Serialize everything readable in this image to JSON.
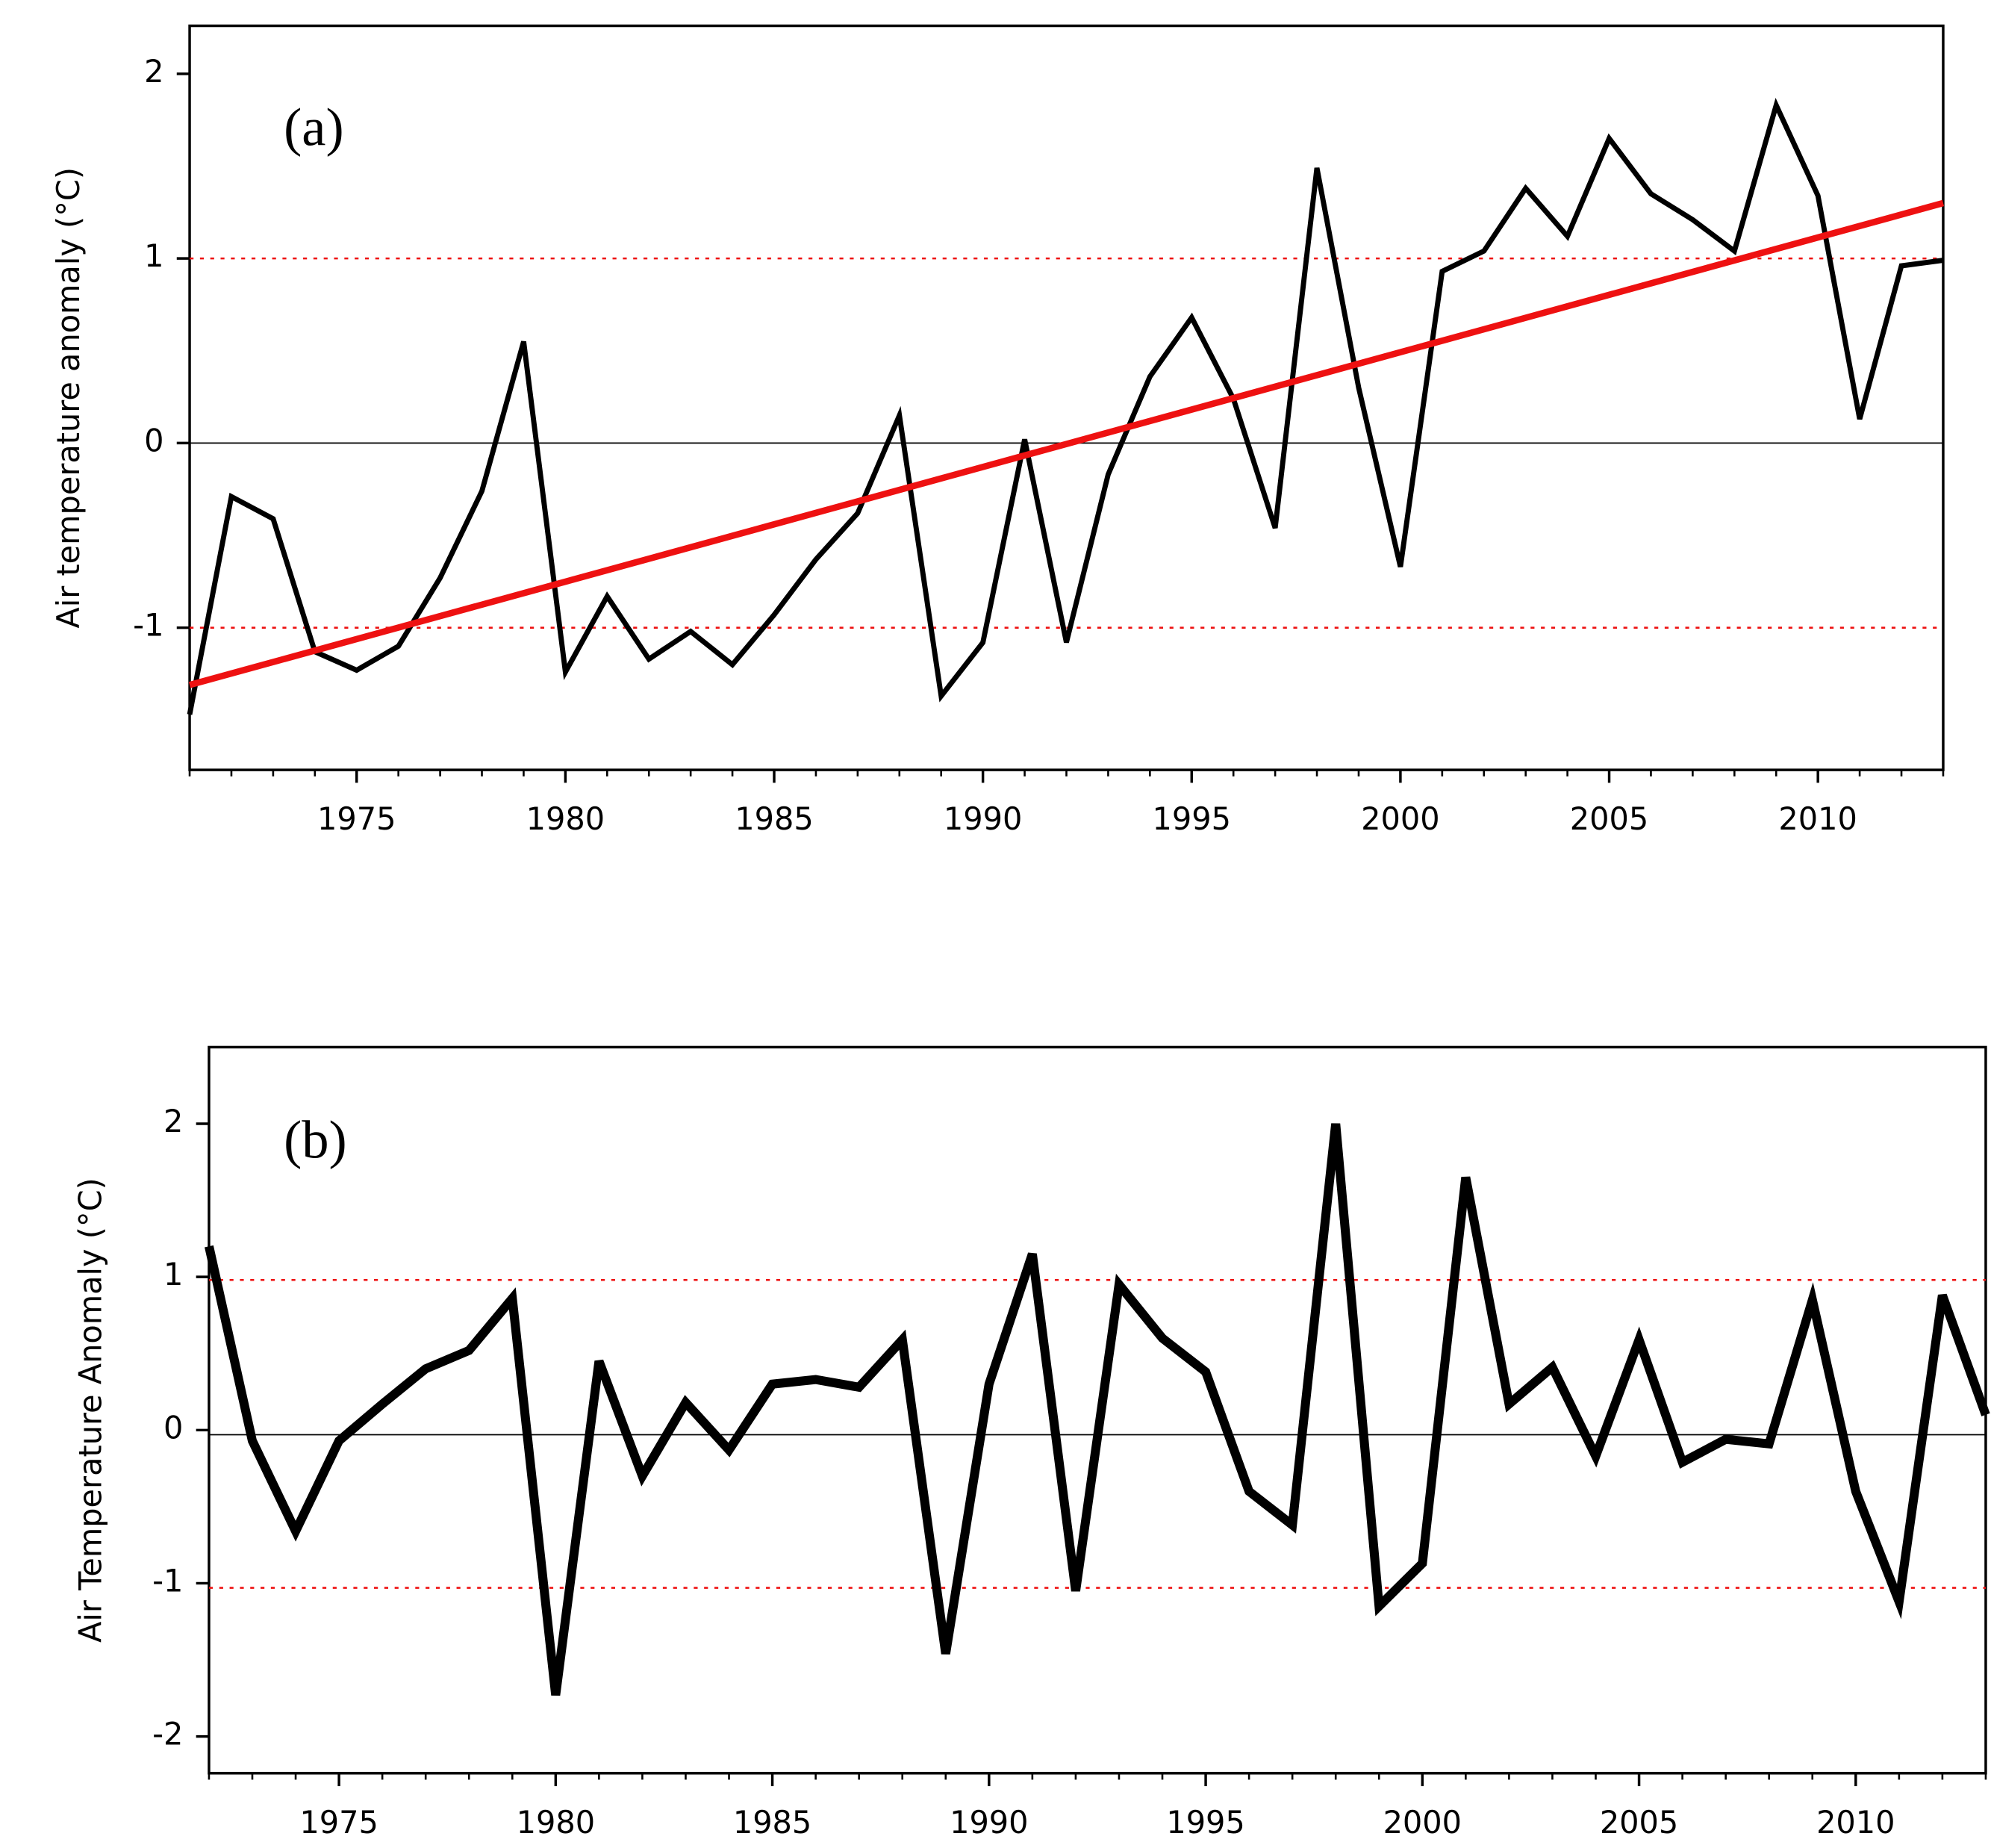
{
  "chart_data": [
    {
      "type": "line",
      "annotation": "(a)",
      "y_label": "Air temperature anomaly (°C)",
      "xlim": [
        1971,
        2013
      ],
      "xticks": [
        1975,
        1980,
        1985,
        1990,
        1995,
        2000,
        2005,
        2010
      ],
      "ylim": [
        -1.77,
        2.26
      ],
      "yticks": [
        -1,
        0,
        1,
        2
      ],
      "series": [
        {
          "color": "#000000",
          "x": [
            1971,
            1972,
            1973,
            1974,
            1975,
            1976,
            1977,
            1978,
            1979,
            1980,
            1981,
            1982,
            1983,
            1984,
            1985,
            1986,
            1987,
            1988,
            1989,
            1990,
            1991,
            1992,
            1993,
            1994,
            1995,
            1996,
            1997,
            1998,
            1999,
            2000,
            2001,
            2002,
            2003,
            2004,
            2005,
            2006,
            2007,
            2008,
            2009,
            2010,
            2011,
            2012,
            2013
          ],
          "values": [
            -1.47,
            -0.29,
            -0.41,
            -1.13,
            -1.23,
            -1.1,
            -0.73,
            -0.26,
            0.55,
            -1.24,
            -0.83,
            -1.17,
            -1.02,
            -1.2,
            -0.93,
            -0.63,
            -0.38,
            0.15,
            -1.37,
            -1.08,
            0.02,
            -1.08,
            -0.17,
            0.36,
            0.68,
            0.24,
            -0.46,
            1.49,
            0.3,
            -0.67,
            0.93,
            1.04,
            1.38,
            1.12,
            1.65,
            1.35,
            1.21,
            1.04,
            1.83,
            1.34,
            0.13,
            0.96,
            0.99
          ]
        },
        {
          "color": "#ee1111",
          "x": [
            1971,
            2013
          ],
          "values": [
            -1.31,
            1.3
          ]
        }
      ],
      "reference_lines": [
        {
          "value": 1,
          "color": "#ee1111",
          "style": "dotted"
        },
        {
          "value": 0,
          "color": "#000000",
          "style": "solid"
        },
        {
          "value": -1,
          "color": "#ee1111",
          "style": "dotted"
        }
      ]
    },
    {
      "type": "line",
      "annotation": "(b)",
      "y_label": "Air Temperature Anomaly (°C)",
      "xlim": [
        1972,
        2013
      ],
      "xticks": [
        1975,
        1980,
        1985,
        1990,
        1995,
        2000,
        2005,
        2010
      ],
      "ylim": [
        -2.24,
        2.5
      ],
      "yticks": [
        -2,
        -1,
        0,
        1,
        2
      ],
      "series": [
        {
          "color": "#000000",
          "x": [
            1972,
            1973,
            1974,
            1975,
            1976,
            1977,
            1978,
            1979,
            1980,
            1981,
            1982,
            1983,
            1984,
            1985,
            1986,
            1987,
            1988,
            1989,
            1990,
            1991,
            1992,
            1993,
            1994,
            1995,
            1996,
            1997,
            1998,
            1999,
            2000,
            2001,
            2002,
            2003,
            2004,
            2005,
            2006,
            2007,
            2008,
            2009,
            2010,
            2011,
            2012,
            2013
          ],
          "values": [
            1.2,
            -0.07,
            -0.66,
            -0.07,
            0.17,
            0.4,
            0.52,
            0.86,
            -1.73,
            0.45,
            -0.3,
            0.18,
            -0.13,
            0.3,
            0.33,
            0.28,
            0.59,
            -1.46,
            0.3,
            1.15,
            -1.05,
            0.95,
            0.6,
            0.38,
            -0.4,
            -0.62,
            2.0,
            -1.15,
            -0.87,
            1.65,
            0.17,
            0.41,
            -0.17,
            0.59,
            -0.21,
            -0.06,
            -0.09,
            0.85,
            -0.4,
            -1.12,
            0.88,
            0.1
          ]
        }
      ],
      "reference_lines": [
        {
          "value": 0.98,
          "color": "#ee1111",
          "style": "dotted"
        },
        {
          "value": -0.03,
          "color": "#000000",
          "style": "solid"
        },
        {
          "value": -1.03,
          "color": "#ee1111",
          "style": "dotted"
        }
      ]
    }
  ]
}
